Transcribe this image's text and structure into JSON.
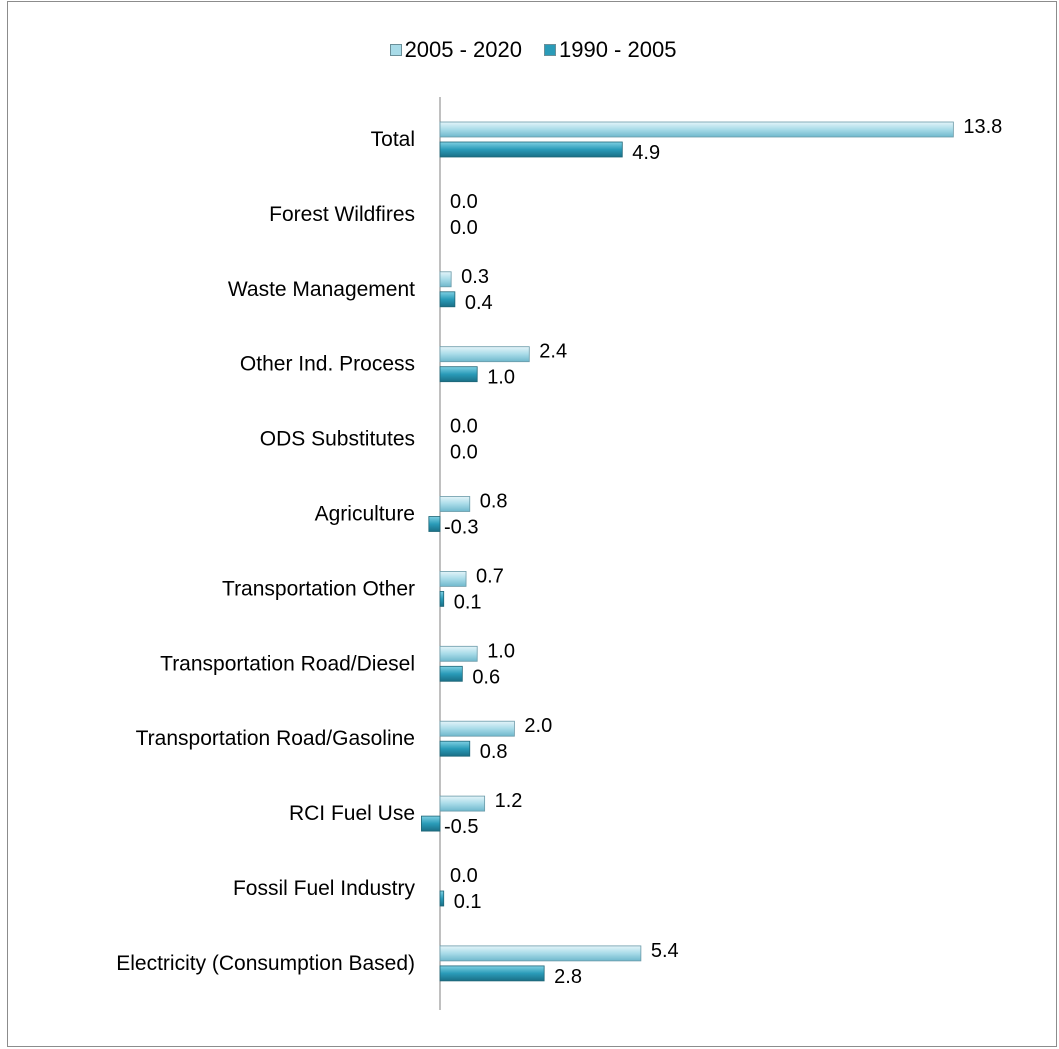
{
  "chart_data": {
    "type": "bar",
    "orientation": "horizontal",
    "categories": [
      "Total",
      "Forest Wildfires",
      "Waste Management",
      "Other Ind. Process",
      "ODS Substitutes",
      "Agriculture",
      "Transportation Other",
      "Transportation Road/Diesel",
      "Transportation Road/Gasoline",
      "RCI Fuel Use",
      "Fossil Fuel Industry",
      "Electricity (Consumption Based)"
    ],
    "series": [
      {
        "name": "2005 - 2020",
        "color": "#a8dbe8",
        "values": [
          13.8,
          0.0,
          0.3,
          2.4,
          0.0,
          0.8,
          0.7,
          1.0,
          2.0,
          1.2,
          0.0,
          5.4
        ],
        "labels": [
          "13.8",
          "0.0",
          "0.3",
          "2.4",
          "0.0",
          "0.8",
          "0.7",
          "1.0",
          "2.0",
          "1.2",
          "0.0",
          "5.4"
        ]
      },
      {
        "name": "1990 - 2005",
        "color": "#2a9bb8",
        "values": [
          4.9,
          0.0,
          0.4,
          1.0,
          0.0,
          -0.3,
          0.1,
          0.6,
          0.8,
          -0.5,
          0.1,
          2.8
        ],
        "labels": [
          "4.9",
          "0.0",
          "0.4",
          "1.0",
          "0.0",
          "-0.3",
          "0.1",
          "0.6",
          "0.8",
          "-0.5",
          "0.1",
          "2.8"
        ]
      }
    ],
    "legend_position": "top",
    "grid": false
  }
}
